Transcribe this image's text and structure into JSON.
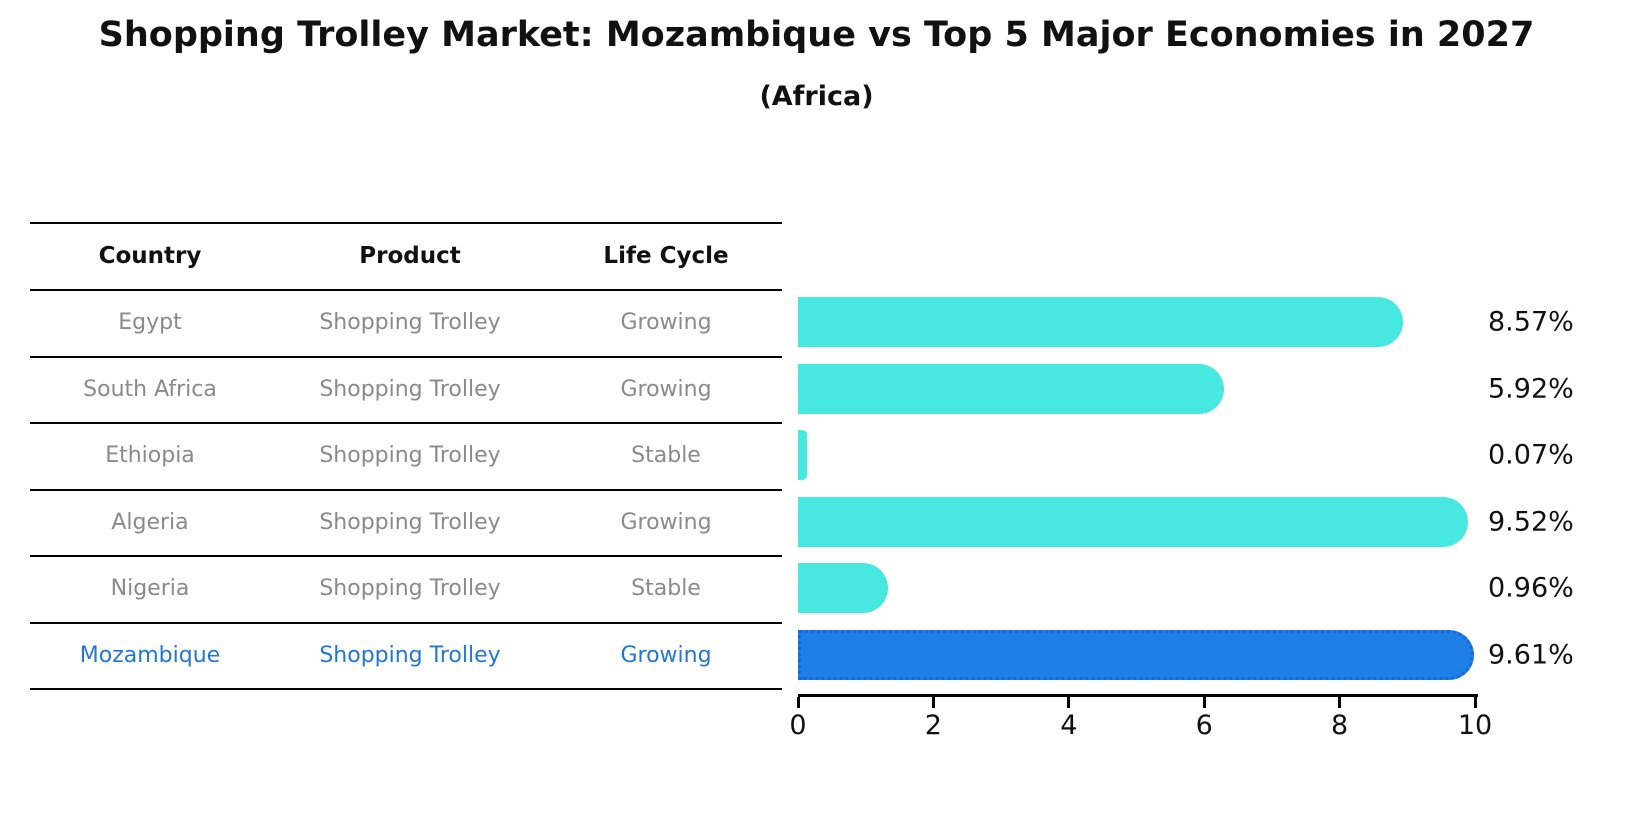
{
  "title": "Shopping Trolley Market: Mozambique vs Top 5 Major Economies in 2027",
  "subtitle": "(Africa)",
  "table": {
    "headers": [
      "Country",
      "Product",
      "Life Cycle"
    ],
    "rows": [
      {
        "country": "Egypt",
        "product": "Shopping Trolley",
        "life_cycle": "Growing",
        "highlighted": false
      },
      {
        "country": "South Africa",
        "product": "Shopping Trolley",
        "life_cycle": "Growing",
        "highlighted": false
      },
      {
        "country": "Ethiopia",
        "product": "Shopping Trolley",
        "life_cycle": "Stable",
        "highlighted": false
      },
      {
        "country": "Algeria",
        "product": "Shopping Trolley",
        "life_cycle": "Growing",
        "highlighted": false
      },
      {
        "country": "Nigeria",
        "product": "Shopping Trolley",
        "life_cycle": "Stable",
        "highlighted": false
      },
      {
        "country": "Mozambique",
        "product": "Shopping Trolley",
        "life_cycle": "Growing",
        "highlighted": true
      }
    ]
  },
  "chart_data": {
    "type": "bar",
    "orientation": "horizontal",
    "title": "Shopping Trolley Market: Mozambique vs Top 5 Major Economies in 2027",
    "subtitle": "(Africa)",
    "categories": [
      "Egypt",
      "South Africa",
      "Ethiopia",
      "Algeria",
      "Nigeria",
      "Mozambique"
    ],
    "values": [
      8.57,
      5.92,
      0.07,
      9.52,
      0.96,
      9.61
    ],
    "value_labels": [
      "8.57%",
      "5.92%",
      "0.07%",
      "9.52%",
      "0.96%",
      "9.61%"
    ],
    "xlabel": "",
    "ylabel": "",
    "xlim": [
      0,
      10
    ],
    "xticks": [
      0,
      2,
      4,
      6,
      8,
      10
    ],
    "grid": false,
    "legend_position": "none",
    "bar_color": "#47e8e0",
    "highlight_color": "#1e7fe6",
    "highlight_index": 5
  },
  "colors": {
    "bar_cyan": "#47e8e0",
    "bar_blue": "#1e7fe6",
    "highlight_text": "#2277d4",
    "body_text": "#8a8a8a",
    "heading_text": "#111111",
    "axis": "#000000"
  }
}
